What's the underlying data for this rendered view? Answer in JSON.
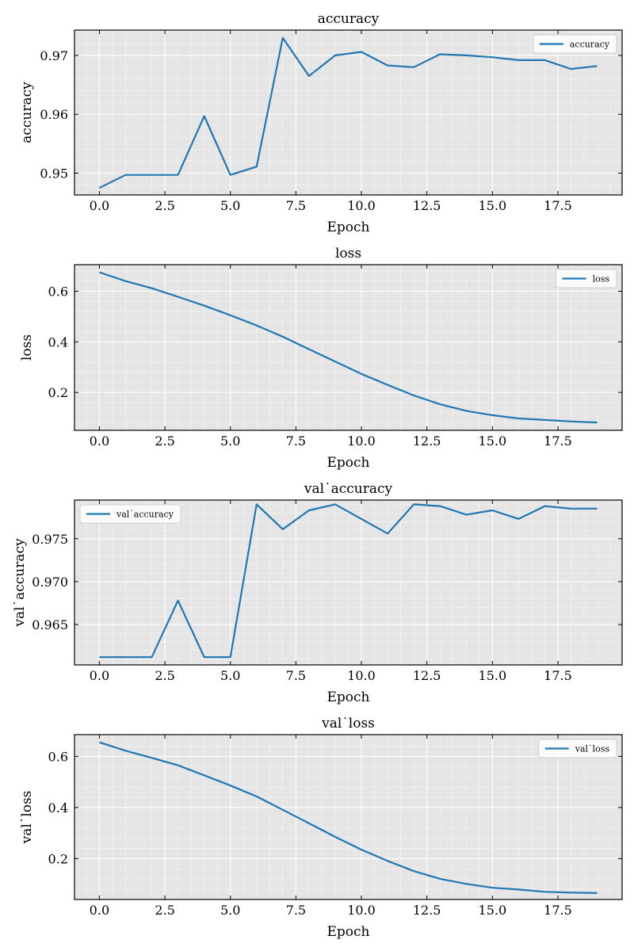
{
  "chart_data": [
    {
      "type": "line",
      "title": "accuracy",
      "xlabel": "Epoch",
      "ylabel": "accuracy",
      "legend_position": "top-right",
      "grid": true,
      "xlim": [
        -0.95,
        19.95
      ],
      "ylim": [
        0.9463,
        0.9743
      ],
      "xticks": [
        0.0,
        2.5,
        5.0,
        7.5,
        10.0,
        12.5,
        15.0,
        17.5
      ],
      "xtick_labels": [
        "0.0",
        "2.5",
        "5.0",
        "7.5",
        "10.0",
        "12.5",
        "15.0",
        "17.5"
      ],
      "yticks": [
        0.95,
        0.96,
        0.97
      ],
      "ytick_labels": [
        "0.95",
        "0.96",
        "0.97"
      ],
      "x": [
        0,
        1,
        2,
        3,
        4,
        5,
        6,
        7,
        8,
        9,
        10,
        11,
        12,
        13,
        14,
        15,
        16,
        17,
        18,
        19
      ],
      "series": [
        {
          "name": "accuracy",
          "color": "#1f77b4",
          "values": [
            0.9475,
            0.9497,
            0.9497,
            0.9497,
            0.9597,
            0.9497,
            0.9511,
            0.973,
            0.9665,
            0.97,
            0.9706,
            0.9683,
            0.968,
            0.9702,
            0.97,
            0.9697,
            0.9692,
            0.9692,
            0.9677,
            0.9682
          ]
        }
      ]
    },
    {
      "type": "line",
      "title": "loss",
      "xlabel": "Epoch",
      "ylabel": "loss",
      "legend_position": "top-right",
      "grid": true,
      "xlim": [
        -0.95,
        19.95
      ],
      "ylim": [
        0.05,
        0.705
      ],
      "xticks": [
        0.0,
        2.5,
        5.0,
        7.5,
        10.0,
        12.5,
        15.0,
        17.5
      ],
      "xtick_labels": [
        "0.0",
        "2.5",
        "5.0",
        "7.5",
        "10.0",
        "12.5",
        "15.0",
        "17.5"
      ],
      "yticks": [
        0.2,
        0.4,
        0.6
      ],
      "ytick_labels": [
        "0.2",
        "0.4",
        "0.6"
      ],
      "x": [
        0,
        1,
        2,
        3,
        4,
        5,
        6,
        7,
        8,
        9,
        10,
        11,
        12,
        13,
        14,
        15,
        16,
        17,
        18,
        19
      ],
      "series": [
        {
          "name": "loss",
          "color": "#1f77b4",
          "values": [
            0.675,
            0.64,
            0.612,
            0.578,
            0.543,
            0.505,
            0.465,
            0.42,
            0.371,
            0.322,
            0.273,
            0.23,
            0.188,
            0.153,
            0.127,
            0.11,
            0.097,
            0.091,
            0.085,
            0.081
          ]
        }
      ]
    },
    {
      "type": "line",
      "title": "val˙accuracy",
      "xlabel": "Epoch",
      "ylabel": "val˙accuracy",
      "legend_position": "top-left",
      "grid": true,
      "xlim": [
        -0.95,
        19.95
      ],
      "ylim": [
        0.9603,
        0.9795
      ],
      "xticks": [
        0.0,
        2.5,
        5.0,
        7.5,
        10.0,
        12.5,
        15.0,
        17.5
      ],
      "xtick_labels": [
        "0.0",
        "2.5",
        "5.0",
        "7.5",
        "10.0",
        "12.5",
        "15.0",
        "17.5"
      ],
      "yticks": [
        0.965,
        0.97,
        0.975
      ],
      "ytick_labels": [
        "0.965",
        "0.970",
        "0.975"
      ],
      "x": [
        0,
        1,
        2,
        3,
        4,
        5,
        6,
        7,
        8,
        9,
        10,
        11,
        12,
        13,
        14,
        15,
        16,
        17,
        18,
        19
      ],
      "series": [
        {
          "name": "val˙accuracy",
          "color": "#1f77b4",
          "values": [
            0.9612,
            0.9612,
            0.9612,
            0.9678,
            0.9612,
            0.9612,
            0.979,
            0.9761,
            0.9783,
            0.979,
            0.9773,
            0.9756,
            0.979,
            0.9788,
            0.9778,
            0.9783,
            0.9773,
            0.9788,
            0.9785,
            0.9785
          ]
        }
      ]
    },
    {
      "type": "line",
      "title": "val˙loss",
      "xlabel": "Epoch",
      "ylabel": "val˙loss",
      "legend_position": "top-right",
      "grid": true,
      "xlim": [
        -0.95,
        19.95
      ],
      "ylim": [
        0.04,
        0.685
      ],
      "xticks": [
        0.0,
        2.5,
        5.0,
        7.5,
        10.0,
        12.5,
        15.0,
        17.5
      ],
      "xtick_labels": [
        "0.0",
        "2.5",
        "5.0",
        "7.5",
        "10.0",
        "12.5",
        "15.0",
        "17.5"
      ],
      "yticks": [
        0.2,
        0.4,
        0.6
      ],
      "ytick_labels": [
        "0.2",
        "0.4",
        "0.6"
      ],
      "x": [
        0,
        1,
        2,
        3,
        4,
        5,
        6,
        7,
        8,
        9,
        10,
        11,
        12,
        13,
        14,
        15,
        16,
        17,
        18,
        19
      ],
      "series": [
        {
          "name": "val˙loss",
          "color": "#1f77b4",
          "values": [
            0.655,
            0.622,
            0.594,
            0.565,
            0.526,
            0.486,
            0.443,
            0.391,
            0.338,
            0.285,
            0.235,
            0.191,
            0.151,
            0.121,
            0.101,
            0.086,
            0.079,
            0.07,
            0.067,
            0.065
          ]
        }
      ]
    }
  ]
}
